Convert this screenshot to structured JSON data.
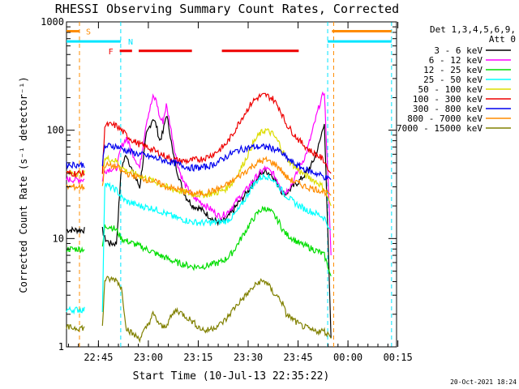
{
  "chart_data": {
    "type": "line",
    "title": "RHESSI Observing Summary Count Rates, Corrected",
    "xlabel": "Start Time (10-Jul-13 22:35:22)",
    "ylabel": "Corrected Count Rate (s⁻¹ detector⁻¹)",
    "x_unit": "minutes after 22:35:22",
    "xlim": [
      0,
      99.2
    ],
    "ylim": [
      1,
      1000
    ],
    "yscale": "log",
    "x_ticks": [
      {
        "x": 9.6,
        "label": "22:45"
      },
      {
        "x": 24.6,
        "label": "23:00"
      },
      {
        "x": 39.6,
        "label": "23:15"
      },
      {
        "x": 54.6,
        "label": "23:30"
      },
      {
        "x": 69.6,
        "label": "23:45"
      },
      {
        "x": 84.6,
        "label": "00:00"
      },
      {
        "x": 99.6,
        "label": "00:15"
      }
    ],
    "y_ticks": [
      {
        "y": 1,
        "label": "1"
      },
      {
        "y": 10,
        "label": "10"
      },
      {
        "y": 100,
        "label": "100"
      },
      {
        "y": 1000,
        "label": "1000"
      }
    ],
    "legend": {
      "header": "Det 1,3,4,5,6,9,",
      "subheader": "Att 0",
      "placement": "right"
    },
    "flags": [
      {
        "label": "S",
        "color": "#ff8c00",
        "segments": [
          [
            0,
            3.8
          ],
          [
            79.8,
            97.7
          ]
        ],
        "level": 820
      },
      {
        "label": "N",
        "color": "#00e5ff",
        "segments": [
          [
            0,
            16.3
          ],
          [
            78.5,
            97.7
          ]
        ],
        "level": 660
      },
      {
        "label": "F",
        "color": "#ee0000",
        "segments": [
          [
            16.0,
            19.7
          ],
          [
            21.7,
            37.7
          ],
          [
            46.7,
            69.8
          ]
        ],
        "level": 540
      }
    ],
    "vlines": [
      {
        "x": 3.9,
        "color": "#ff8c00"
      },
      {
        "x": 16.3,
        "color": "#00e5ff"
      },
      {
        "x": 78.5,
        "color": "#00e5ff"
      },
      {
        "x": 80.3,
        "color": "#ff8c00"
      },
      {
        "x": 97.7,
        "color": "#00e5ff"
      }
    ],
    "gaps": [
      [
        5.6,
        10.8
      ],
      [
        78.5,
        79.5
      ]
    ],
    "x": [
      0,
      10.8,
      11.5,
      13,
      15,
      16.5,
      18,
      20,
      22,
      24,
      26,
      27,
      28,
      29,
      30,
      31,
      32,
      33,
      34,
      35,
      36,
      37,
      38,
      40,
      42,
      44,
      46,
      48,
      50,
      52,
      54,
      56,
      58,
      59.6,
      60,
      62,
      64,
      65,
      66,
      68,
      70,
      72,
      74,
      76,
      77.5,
      79.5
    ],
    "series": [
      {
        "name": "3 - 6 keV",
        "color": "#000000",
        "values": [
          12,
          12,
          10,
          9,
          9,
          45,
          60,
          40,
          30,
          90,
          130,
          110,
          80,
          95,
          140,
          100,
          60,
          45,
          35,
          28,
          24,
          22,
          20,
          19,
          17,
          15,
          14,
          15,
          18,
          22,
          26,
          32,
          38,
          42,
          42,
          38,
          30,
          26,
          26,
          30,
          34,
          40,
          50,
          75,
          120,
          1.2
        ]
      },
      {
        "name": "6 - 12 keV",
        "color": "#ff00ff",
        "values": [
          35,
          35,
          42,
          44,
          44,
          70,
          85,
          60,
          45,
          120,
          200,
          190,
          130,
          120,
          170,
          120,
          80,
          55,
          42,
          34,
          30,
          27,
          24,
          22,
          20,
          18,
          16,
          17,
          20,
          24,
          28,
          34,
          40,
          44,
          44,
          40,
          32,
          27,
          27,
          33,
          45,
          60,
          100,
          170,
          230,
          7
        ]
      },
      {
        "name": "12 - 25 keV",
        "color": "#00dd00",
        "values": [
          8,
          8,
          13,
          13,
          12,
          10,
          9.5,
          9,
          8.5,
          8,
          7.5,
          7.2,
          7,
          6.8,
          6.6,
          6.4,
          6.2,
          6,
          5.9,
          5.8,
          5.7,
          5.6,
          5.5,
          5.5,
          5.6,
          5.8,
          6,
          6.5,
          7.5,
          9.5,
          12,
          15,
          18,
          19,
          19,
          17,
          14,
          12,
          11,
          10,
          9,
          8.5,
          8,
          7.5,
          7,
          4.5
        ]
      },
      {
        "name": "25 - 50 keV",
        "color": "#00ffff",
        "values": [
          2.2,
          2.2,
          32,
          30,
          28,
          24,
          22,
          21,
          20,
          19.5,
          19,
          18.5,
          18,
          17.5,
          17,
          16.5,
          16,
          15.5,
          15.2,
          15,
          14.7,
          14.4,
          14.2,
          14,
          14,
          14,
          14.2,
          14.5,
          16,
          19,
          24,
          31,
          36,
          38,
          38,
          35,
          30,
          27,
          25,
          22,
          20,
          18.5,
          17.5,
          16.5,
          15.5,
          12
        ]
      },
      {
        "name": "50 - 100 keV",
        "color": "#dddd00",
        "values": [
          40,
          40,
          55,
          54,
          52,
          46,
          42,
          40,
          38,
          36,
          34,
          33,
          32,
          31,
          30,
          29,
          28.5,
          28,
          27.5,
          27,
          26.5,
          26,
          25.5,
          25.5,
          25.5,
          26,
          27,
          29,
          33,
          42,
          55,
          75,
          92,
          100,
          100,
          92,
          75,
          64,
          56,
          48,
          42,
          38,
          35,
          32,
          29,
          20
        ]
      },
      {
        "name": "100 - 300 keV",
        "color": "#ee0000",
        "values": [
          40,
          40,
          110,
          112,
          110,
          100,
          90,
          80,
          74,
          70,
          66,
          63,
          61,
          59,
          57,
          55,
          54,
          53,
          52,
          52,
          52,
          52,
          53,
          54,
          56,
          60,
          66,
          75,
          92,
          120,
          150,
          185,
          205,
          210,
          210,
          195,
          160,
          135,
          115,
          95,
          80,
          70,
          62,
          57,
          52,
          40
        ]
      },
      {
        "name": "300 - 800 keV",
        "color": "#0000ee",
        "values": [
          48,
          48,
          70,
          72,
          71,
          68,
          65,
          62,
          60,
          58,
          56,
          55,
          54,
          53,
          52,
          51,
          50,
          49,
          48,
          47,
          46,
          45,
          45,
          45,
          46,
          48,
          52,
          57,
          62,
          66,
          68,
          70,
          70,
          70,
          70,
          68,
          64,
          60,
          56,
          50,
          46,
          43,
          41,
          39,
          37,
          35
        ]
      },
      {
        "name": "800 - 7000 keV",
        "color": "#ff8c00",
        "values": [
          30,
          30,
          48,
          47,
          46,
          42,
          40,
          38,
          37,
          35,
          34,
          33,
          32,
          31,
          30,
          29.5,
          29,
          28.5,
          28,
          27.5,
          27,
          26.5,
          26,
          26,
          26.5,
          27.5,
          29,
          31,
          34,
          38,
          42,
          47,
          51,
          53,
          53,
          50,
          45,
          41,
          37,
          34,
          32,
          30,
          29,
          28,
          27,
          25
        ]
      },
      {
        "name": "7000 - 15000 keV",
        "color": "#808000",
        "values": [
          1.5,
          1.5,
          4.2,
          4.2,
          4.2,
          3.5,
          1.5,
          1.3,
          1.2,
          1.5,
          2,
          1.8,
          1.6,
          1.5,
          1.6,
          1.8,
          2,
          2.2,
          2.1,
          2,
          1.9,
          1.8,
          1.7,
          1.5,
          1.4,
          1.5,
          1.6,
          1.8,
          2.2,
          2.6,
          3,
          3.5,
          4,
          4,
          4,
          3.2,
          2.8,
          2.5,
          2,
          1.8,
          1.6,
          1.5,
          1.4,
          1.4,
          1.4,
          1.2
        ]
      }
    ],
    "footer_timestamp": "20-Oct-2021 18:24"
  }
}
